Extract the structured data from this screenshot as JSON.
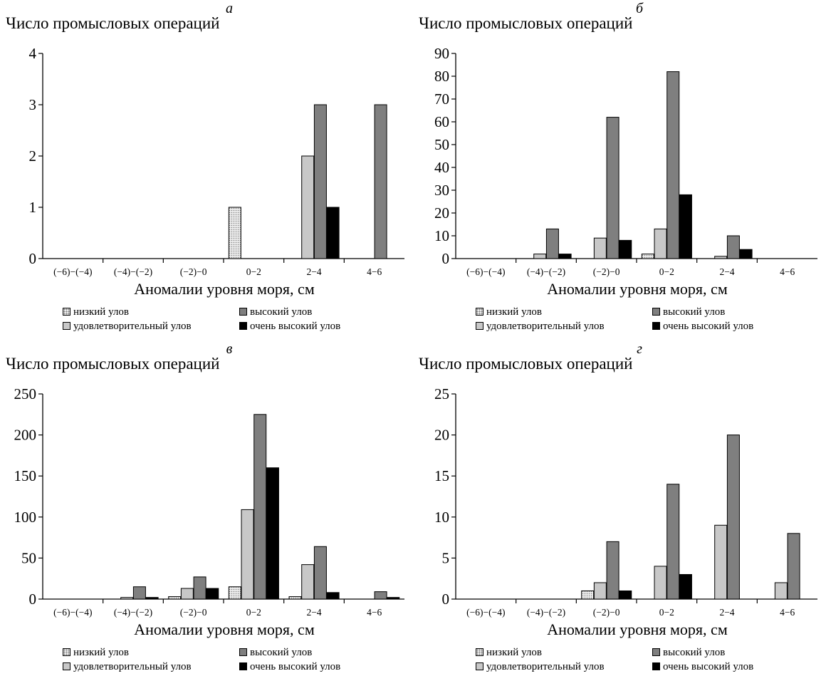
{
  "legend": {
    "low": "низкий улов",
    "high": "высокий улов",
    "satisfactory": "удовлетворительный улов",
    "very_high": "очень высокий улов"
  },
  "colors": {
    "low": "#eeeeee",
    "satisfactory": "#c8c8c8",
    "high": "#7f7f7f",
    "very_high": "#000000"
  },
  "chart_data": [
    {
      "type": "bar",
      "panel": "а",
      "ylabel": "Число промысловых операций",
      "xlabel": "Аномалии уровня моря, см",
      "categories": [
        "(−6)−(−4)",
        "(−4)−(−2)",
        "(−2)−0",
        "0−2",
        "2−4",
        "4−6"
      ],
      "ylim": [
        0,
        4
      ],
      "yticks": [
        0,
        1,
        2,
        3,
        4
      ],
      "series": [
        {
          "name": "низкий улов",
          "values": [
            0,
            0,
            0,
            1,
            0,
            0
          ]
        },
        {
          "name": "удовлетворительный улов",
          "values": [
            0,
            0,
            0,
            0,
            2,
            0
          ]
        },
        {
          "name": "высокий улов",
          "values": [
            0,
            0,
            0,
            0,
            3,
            3
          ]
        },
        {
          "name": "очень высокий улов",
          "values": [
            0,
            0,
            0,
            0,
            1,
            0
          ]
        }
      ]
    },
    {
      "type": "bar",
      "panel": "б",
      "ylabel": "Число промысловых операций",
      "xlabel": "Аномалии уровня моря, см",
      "categories": [
        "(−6)−(−4)",
        "(−4)−(−2)",
        "(−2)−0",
        "0−2",
        "2−4",
        "4−6"
      ],
      "ylim": [
        0,
        90
      ],
      "yticks": [
        0,
        10,
        20,
        30,
        40,
        50,
        60,
        70,
        80,
        90
      ],
      "series": [
        {
          "name": "низкий улов",
          "values": [
            0,
            0,
            0,
            2,
            0,
            0
          ]
        },
        {
          "name": "удовлетворительный улов",
          "values": [
            0,
            2,
            9,
            13,
            1,
            0
          ]
        },
        {
          "name": "высокий улов",
          "values": [
            0,
            13,
            62,
            82,
            10,
            0
          ]
        },
        {
          "name": "очень высокий улов",
          "values": [
            0,
            2,
            8,
            28,
            4,
            0
          ]
        }
      ]
    },
    {
      "type": "bar",
      "panel": "в",
      "ylabel": "Число промысловых операций",
      "xlabel": "Аномалии уровня моря, см",
      "categories": [
        "(−6)−(−4)",
        "(−4)−(−2)",
        "(−2)−0",
        "0−2",
        "2−4",
        "4−6"
      ],
      "ylim": [
        0,
        250
      ],
      "yticks": [
        0,
        50,
        100,
        150,
        200,
        250
      ],
      "series": [
        {
          "name": "низкий улов",
          "values": [
            0,
            0,
            3,
            15,
            3,
            0
          ]
        },
        {
          "name": "удовлетворительный улов",
          "values": [
            0,
            2,
            13,
            109,
            42,
            0
          ]
        },
        {
          "name": "высокий улов",
          "values": [
            0,
            15,
            27,
            225,
            64,
            9
          ]
        },
        {
          "name": "очень высокий улов",
          "values": [
            0,
            2,
            13,
            160,
            8,
            2
          ]
        }
      ]
    },
    {
      "type": "bar",
      "panel": "г",
      "ylabel": "Число промысловых операций",
      "xlabel": "Аномалии уровня моря, см",
      "categories": [
        "(−6)−(−4)",
        "(−4)−(−2)",
        "(−2)−0",
        "0−2",
        "2−4",
        "4−6"
      ],
      "ylim": [
        0,
        25
      ],
      "yticks": [
        0,
        5,
        10,
        15,
        20,
        25
      ],
      "series": [
        {
          "name": "низкий улов",
          "values": [
            0,
            0,
            1,
            0,
            0,
            0
          ]
        },
        {
          "name": "удовлетворительный улов",
          "values": [
            0,
            0,
            2,
            4,
            9,
            2
          ]
        },
        {
          "name": "высокий улов",
          "values": [
            0,
            0,
            7,
            14,
            20,
            8
          ]
        },
        {
          "name": "очень высокий улов",
          "values": [
            0,
            0,
            1,
            3,
            0,
            0
          ]
        }
      ]
    }
  ]
}
